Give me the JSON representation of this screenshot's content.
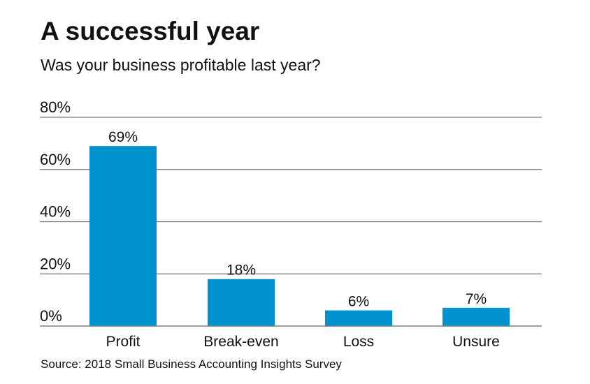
{
  "chart_data": {
    "type": "bar",
    "title": "A successful year",
    "subtitle": "Was your business profitable last year?",
    "categories": [
      "Profit",
      "Break-even",
      "Loss",
      "Unsure"
    ],
    "values": [
      69,
      18,
      6,
      7
    ],
    "value_labels": [
      "69%",
      "18%",
      "6%",
      "7%"
    ],
    "ylim": [
      0,
      80
    ],
    "yticks": [
      0,
      20,
      40,
      60,
      80
    ],
    "ytick_labels": [
      "0%",
      "20%",
      "40%",
      "60%",
      "80%"
    ],
    "xlabel": "",
    "ylabel": "",
    "grid": true,
    "bar_color": "#0093d0",
    "source": "Source: 2018 Small Business Accounting Insights Survey"
  }
}
